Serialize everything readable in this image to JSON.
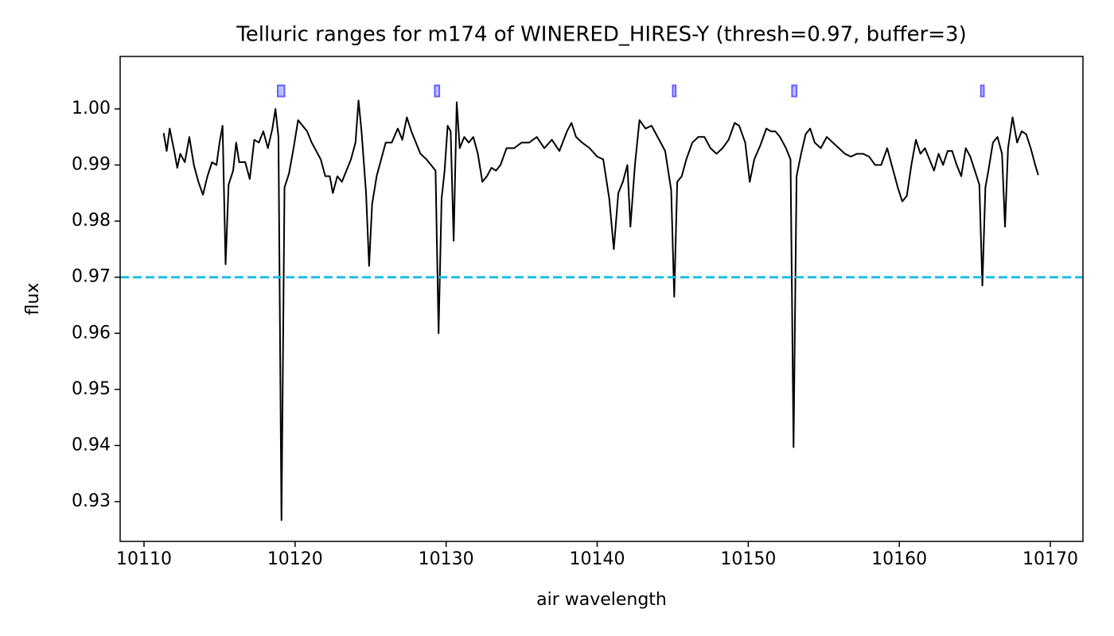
{
  "chart_data": {
    "type": "line",
    "title": "Telluric ranges for m174 of WINERED_HIRES-Y (thresh=0.97, buffer=3)",
    "xlabel": "air wavelength",
    "ylabel": "flux",
    "xlim": [
      10108.42,
      10172.16
    ],
    "ylim": [
      0.92291,
      1.00935
    ],
    "xticks": [
      10110,
      10120,
      10130,
      10140,
      10150,
      10160,
      10170
    ],
    "yticks": [
      0.93,
      0.94,
      0.95,
      0.96,
      0.97,
      0.98,
      0.99,
      {
        "value": 1,
        "label": "1.00"
      }
    ],
    "threshold": 0.97,
    "threshold_color": "#1cbde6",
    "ranges": {
      "color": "#4444ff",
      "y": [
        1.0032,
        1.0032,
        1.0032,
        1.0032,
        1.0032
      ],
      "x0": [
        10118.85,
        10129.25,
        10145.0,
        10152.9,
        10165.4
      ],
      "x1": [
        10119.3,
        10129.55,
        10145.2,
        10153.2,
        10165.6
      ]
    },
    "series": [
      {
        "color": "#000000",
        "x": [
          10111.3,
          10111.5,
          10111.7,
          10112.0,
          10112.2,
          10112.4,
          10112.7,
          10113.0,
          10113.3,
          10113.6,
          10113.9,
          10114.2,
          10114.5,
          10114.8,
          10115.0,
          10115.2,
          10115.4,
          10115.6,
          10115.9,
          10116.1,
          10116.3,
          10116.7,
          10117.0,
          10117.3,
          10117.6,
          10117.9,
          10118.2,
          10118.5,
          10118.7,
          10118.9,
          10119.1,
          10119.3,
          10119.6,
          10119.9,
          10120.2,
          10120.5,
          10120.8,
          10121.1,
          10121.4,
          10121.7,
          10122.0,
          10122.3,
          10122.5,
          10122.8,
          10123.1,
          10123.4,
          10123.7,
          10124.0,
          10124.2,
          10124.4,
          10124.7,
          10124.9,
          10125.1,
          10125.4,
          10125.7,
          10126.0,
          10126.4,
          10126.8,
          10127.1,
          10127.4,
          10127.7,
          10128.0,
          10128.3,
          10128.7,
          10129.0,
          10129.3,
          10129.5,
          10129.7,
          10129.9,
          10130.1,
          10130.3,
          10130.5,
          10130.7,
          10130.9,
          10131.2,
          10131.5,
          10131.8,
          10132.1,
          10132.4,
          10132.7,
          10133.0,
          10133.3,
          10133.6,
          10134.0,
          10134.5,
          10135.0,
          10135.5,
          10136.0,
          10136.5,
          10137.0,
          10137.5,
          10138.0,
          10138.3,
          10138.6,
          10139.0,
          10139.5,
          10140.0,
          10140.4,
          10140.8,
          10141.1,
          10141.4,
          10141.7,
          10142.0,
          10142.2,
          10142.5,
          10142.8,
          10143.2,
          10143.6,
          10144.0,
          10144.5,
          10144.9,
          10145.1,
          10145.3,
          10145.6,
          10145.9,
          10146.3,
          10146.7,
          10147.1,
          10147.5,
          10147.9,
          10148.3,
          10148.7,
          10149.1,
          10149.4,
          10149.8,
          10150.1,
          10150.4,
          10150.8,
          10151.2,
          10151.5,
          10151.8,
          10152.1,
          10152.5,
          10152.8,
          10153.0,
          10153.2,
          10153.5,
          10153.8,
          10154.1,
          10154.4,
          10154.8,
          10155.2,
          10155.6,
          10156.0,
          10156.4,
          10156.8,
          10157.2,
          10157.6,
          10158.0,
          10158.4,
          10158.8,
          10159.2,
          10159.6,
          10159.9,
          10160.2,
          10160.5,
          10160.8,
          10161.1,
          10161.4,
          10161.7,
          10162.0,
          10162.3,
          10162.6,
          10162.9,
          10163.2,
          10163.5,
          10163.8,
          10164.1,
          10164.4,
          10164.7,
          10165.0,
          10165.3,
          10165.5,
          10165.7,
          10165.9,
          10166.2,
          10166.5,
          10166.8,
          10167.0,
          10167.2,
          10167.5,
          10167.8,
          10168.1,
          10168.4,
          10168.7,
          10169.0,
          10169.2
        ],
        "values": [
          0.9957,
          0.9925,
          0.9965,
          0.9925,
          0.9895,
          0.992,
          0.9905,
          0.995,
          0.99,
          0.987,
          0.9847,
          0.988,
          0.9905,
          0.99,
          0.994,
          0.997,
          0.9723,
          0.9865,
          0.989,
          0.994,
          0.9905,
          0.9905,
          0.9875,
          0.9945,
          0.994,
          0.996,
          0.993,
          0.9965,
          1.0,
          0.995,
          0.9267,
          0.986,
          0.9885,
          0.993,
          0.998,
          0.997,
          0.996,
          0.994,
          0.9925,
          0.991,
          0.988,
          0.988,
          0.985,
          0.988,
          0.987,
          0.989,
          0.991,
          0.994,
          1.0015,
          0.996,
          0.985,
          0.972,
          0.983,
          0.988,
          0.991,
          0.994,
          0.994,
          0.9965,
          0.9945,
          0.9985,
          0.996,
          0.994,
          0.992,
          0.991,
          0.99,
          0.989,
          0.96,
          0.984,
          0.989,
          0.997,
          0.996,
          0.9765,
          1.0012,
          0.993,
          0.995,
          0.994,
          0.995,
          0.992,
          0.987,
          0.988,
          0.9895,
          0.989,
          0.99,
          0.993,
          0.993,
          0.994,
          0.994,
          0.995,
          0.993,
          0.9945,
          0.9925,
          0.996,
          0.9975,
          0.995,
          0.994,
          0.993,
          0.9915,
          0.991,
          0.984,
          0.975,
          0.985,
          0.987,
          0.99,
          0.979,
          0.99,
          0.998,
          0.9965,
          0.997,
          0.995,
          0.9925,
          0.9855,
          0.9665,
          0.987,
          0.988,
          0.991,
          0.994,
          0.995,
          0.995,
          0.993,
          0.992,
          0.993,
          0.9945,
          0.9975,
          0.997,
          0.994,
          0.987,
          0.991,
          0.9935,
          0.9965,
          0.996,
          0.996,
          0.995,
          0.993,
          0.991,
          0.9397,
          0.988,
          0.992,
          0.9955,
          0.9965,
          0.994,
          0.993,
          0.995,
          0.994,
          0.993,
          0.992,
          0.9915,
          0.992,
          0.992,
          0.9915,
          0.99,
          0.99,
          0.993,
          0.989,
          0.986,
          0.9835,
          0.9845,
          0.99,
          0.9945,
          0.992,
          0.993,
          0.991,
          0.989,
          0.992,
          0.99,
          0.9925,
          0.9925,
          0.99,
          0.988,
          0.993,
          0.9915,
          0.989,
          0.9865,
          0.9685,
          0.986,
          0.989,
          0.994,
          0.995,
          0.992,
          0.979,
          0.993,
          0.9985,
          0.994,
          0.996,
          0.9955,
          0.993,
          0.99,
          0.9882
        ]
      }
    ]
  }
}
